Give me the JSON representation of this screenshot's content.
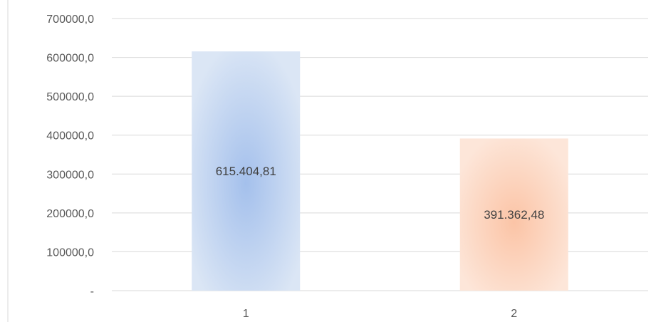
{
  "chart_data": {
    "type": "bar",
    "title": "",
    "xlabel": "",
    "ylabel": "",
    "categories": [
      "1",
      "2"
    ],
    "values": [
      615404.81,
      391362.48
    ],
    "data_labels": [
      "615.404,81",
      "391.362,48"
    ],
    "ylim": [
      0,
      700000
    ],
    "y_ticks": [
      0,
      100000,
      200000,
      300000,
      400000,
      500000,
      600000,
      700000
    ],
    "y_tick_labels": [
      "-",
      "100000,0",
      "200000,0",
      "300000,0",
      "400000,0",
      "500000,0",
      "600000,0",
      "700000,0"
    ],
    "grid": true,
    "legend": "none",
    "colors": {
      "bar_1_center": "#a4c0ec",
      "bar_1_edge": "#dbe6f5",
      "bar_2_center": "#fbc4a6",
      "bar_2_edge": "#fde6d9",
      "gridline": "#d9d9d9",
      "axis_line": "#d9d9d9"
    }
  }
}
